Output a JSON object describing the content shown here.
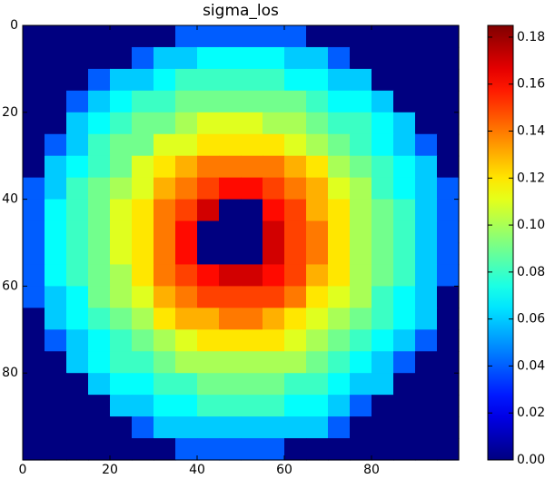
{
  "chart_data": {
    "type": "heatmap",
    "title": "sigma_los",
    "colormap": "jet",
    "xlim": [
      0,
      100
    ],
    "ylim": [
      100,
      0
    ],
    "xticks": [
      0,
      20,
      40,
      60,
      80
    ],
    "yticks": [
      0,
      20,
      40,
      60,
      80
    ],
    "z": [
      [
        0,
        0,
        0,
        0,
        0,
        0,
        0,
        0.04,
        0.04,
        0.04,
        0.04,
        0.04,
        0.04,
        0,
        0,
        0,
        0,
        0,
        0,
        0
      ],
      [
        0,
        0,
        0,
        0,
        0,
        0.04,
        0.06,
        0.06,
        0.07,
        0.07,
        0.07,
        0.07,
        0.06,
        0.06,
        0.04,
        0,
        0,
        0,
        0,
        0
      ],
      [
        0,
        0,
        0,
        0.04,
        0.06,
        0.06,
        0.07,
        0.08,
        0.08,
        0.08,
        0.08,
        0.08,
        0.07,
        0.07,
        0.06,
        0.06,
        0,
        0,
        0,
        0
      ],
      [
        0,
        0,
        0.04,
        0.06,
        0.07,
        0.08,
        0.08,
        0.09,
        0.09,
        0.09,
        0.09,
        0.09,
        0.09,
        0.08,
        0.07,
        0.07,
        0.06,
        0,
        0,
        0
      ],
      [
        0,
        0,
        0.06,
        0.07,
        0.08,
        0.09,
        0.09,
        0.1,
        0.11,
        0.11,
        0.11,
        0.1,
        0.1,
        0.09,
        0.08,
        0.08,
        0.07,
        0.06,
        0,
        0
      ],
      [
        0,
        0.04,
        0.06,
        0.08,
        0.09,
        0.09,
        0.11,
        0.11,
        0.12,
        0.12,
        0.12,
        0.12,
        0.11,
        0.1,
        0.09,
        0.08,
        0.07,
        0.06,
        0.04,
        0
      ],
      [
        0,
        0.06,
        0.07,
        0.08,
        0.09,
        0.11,
        0.12,
        0.13,
        0.14,
        0.14,
        0.14,
        0.14,
        0.13,
        0.12,
        0.1,
        0.09,
        0.08,
        0.07,
        0.06,
        0
      ],
      [
        0.04,
        0.06,
        0.08,
        0.09,
        0.1,
        0.11,
        0.13,
        0.14,
        0.15,
        0.16,
        0.16,
        0.15,
        0.14,
        0.13,
        0.11,
        0.1,
        0.08,
        0.07,
        0.06,
        0.04
      ],
      [
        0.04,
        0.07,
        0.08,
        0.09,
        0.11,
        0.12,
        0.14,
        0.15,
        0.17,
        0,
        0,
        0.16,
        0.15,
        0.13,
        0.12,
        0.1,
        0.09,
        0.08,
        0.06,
        0.04
      ],
      [
        0.04,
        0.07,
        0.08,
        0.09,
        0.11,
        0.12,
        0.14,
        0.16,
        0,
        0,
        0,
        0.17,
        0.15,
        0.14,
        0.12,
        0.1,
        0.09,
        0.08,
        0.06,
        0.04
      ],
      [
        0.04,
        0.07,
        0.08,
        0.09,
        0.11,
        0.12,
        0.14,
        0.16,
        0,
        0,
        0,
        0.17,
        0.15,
        0.14,
        0.12,
        0.1,
        0.09,
        0.08,
        0.06,
        0.04
      ],
      [
        0.04,
        0.07,
        0.08,
        0.09,
        0.1,
        0.12,
        0.14,
        0.15,
        0.16,
        0.17,
        0.17,
        0.16,
        0.15,
        0.13,
        0.12,
        0.1,
        0.09,
        0.08,
        0.06,
        0.04
      ],
      [
        0.04,
        0.06,
        0.07,
        0.09,
        0.1,
        0.11,
        0.13,
        0.14,
        0.15,
        0.15,
        0.15,
        0.15,
        0.14,
        0.12,
        0.11,
        0.1,
        0.08,
        0.07,
        0.06,
        0
      ],
      [
        0,
        0.06,
        0.07,
        0.08,
        0.09,
        0.1,
        0.12,
        0.13,
        0.13,
        0.14,
        0.14,
        0.13,
        0.12,
        0.11,
        0.1,
        0.09,
        0.08,
        0.07,
        0.06,
        0
      ],
      [
        0,
        0.04,
        0.06,
        0.07,
        0.08,
        0.09,
        0.1,
        0.11,
        0.12,
        0.12,
        0.12,
        0.12,
        0.11,
        0.1,
        0.09,
        0.08,
        0.07,
        0.06,
        0.04,
        0
      ],
      [
        0,
        0,
        0.06,
        0.07,
        0.08,
        0.08,
        0.09,
        0.1,
        0.1,
        0.1,
        0.1,
        0.1,
        0.1,
        0.09,
        0.08,
        0.07,
        0.06,
        0.04,
        0,
        0
      ],
      [
        0,
        0,
        0,
        0.06,
        0.07,
        0.07,
        0.08,
        0.08,
        0.09,
        0.09,
        0.09,
        0.09,
        0.08,
        0.08,
        0.07,
        0.06,
        0.06,
        0,
        0,
        0
      ],
      [
        0,
        0,
        0,
        0,
        0.06,
        0.06,
        0.07,
        0.07,
        0.08,
        0.08,
        0.08,
        0.08,
        0.07,
        0.07,
        0.06,
        0.04,
        0,
        0,
        0,
        0
      ],
      [
        0,
        0,
        0,
        0,
        0,
        0.04,
        0.06,
        0.06,
        0.06,
        0.06,
        0.06,
        0.06,
        0.06,
        0.06,
        0.04,
        0,
        0,
        0,
        0,
        0
      ],
      [
        0,
        0,
        0,
        0,
        0,
        0,
        0,
        0.04,
        0.04,
        0.04,
        0.04,
        0.04,
        0,
        0,
        0,
        0,
        0,
        0,
        0,
        0
      ]
    ],
    "colorbar": {
      "lim": [
        0,
        0.185
      ],
      "ticks": [
        {
          "value": 0,
          "label": "0.00"
        },
        {
          "value": 0.02,
          "label": "0.02"
        },
        {
          "value": 0.04,
          "label": "0.04"
        },
        {
          "value": 0.06,
          "label": "0.06"
        },
        {
          "value": 0.08,
          "label": "0.08"
        },
        {
          "value": 0.1,
          "label": "0.10"
        },
        {
          "value": 0.12,
          "label": "0.12"
        },
        {
          "value": 0.14,
          "label": "0.14"
        },
        {
          "value": 0.16,
          "label": "0.16"
        },
        {
          "value": 0.18,
          "label": "0.18"
        }
      ]
    }
  }
}
